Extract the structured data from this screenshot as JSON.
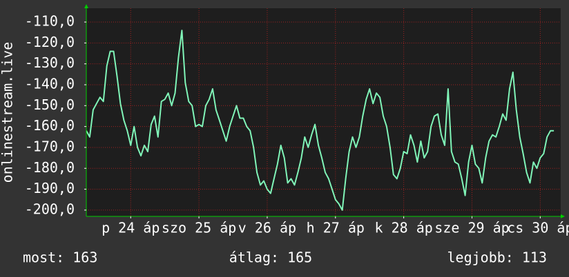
{
  "chart_data": {
    "type": "line",
    "ylabel": "onlinestream.live",
    "color": "#80f5b8",
    "grid": true,
    "annotations": [
      "most: 163",
      "átlag: 165",
      "legjobb: 113"
    ],
    "xlim": [
      23.35,
      30.3
    ],
    "xticks": [
      {
        "value": 24,
        "label": "p 24 áp"
      },
      {
        "value": 25,
        "label": "szo 25 áp"
      },
      {
        "value": 26,
        "label": "v 26 áp"
      },
      {
        "value": 27,
        "label": "h 27 áp"
      },
      {
        "value": 28,
        "label": "k 28 áp"
      },
      {
        "value": 29,
        "label": "sze 29 áp"
      },
      {
        "value": 30,
        "label": "cs 30 áp"
      }
    ],
    "ylim": [
      -203,
      -103.4
    ],
    "yticks": [
      {
        "value": -110,
        "label": "-110,0"
      },
      {
        "value": -120,
        "label": "-120,0"
      },
      {
        "value": -130,
        "label": "-130,0"
      },
      {
        "value": -140,
        "label": "-140,0"
      },
      {
        "value": -150,
        "label": "-150,0"
      },
      {
        "value": -160,
        "label": "-160,0"
      },
      {
        "value": -170,
        "label": "-170,0"
      },
      {
        "value": -180,
        "label": "-180,0"
      },
      {
        "value": -190,
        "label": "-190,0"
      },
      {
        "value": -200,
        "label": "-200,0"
      }
    ],
    "x": [
      23.35,
      23.4,
      23.45,
      23.5,
      23.55,
      23.6,
      23.65,
      23.7,
      23.75,
      23.8,
      23.85,
      23.9,
      23.95,
      24,
      24.05,
      24.1,
      24.15,
      24.2,
      24.25,
      24.3,
      24.35,
      24.4,
      24.45,
      24.5,
      24.55,
      24.6,
      24.65,
      24.7,
      24.75,
      24.8,
      24.85,
      24.9,
      24.95,
      25,
      25.05,
      25.1,
      25.15,
      25.2,
      25.25,
      25.3,
      25.35,
      25.4,
      25.45,
      25.5,
      25.55,
      25.6,
      25.65,
      25.7,
      25.75,
      25.8,
      25.85,
      25.9,
      25.95,
      26,
      26.05,
      26.1,
      26.15,
      26.2,
      26.25,
      26.3,
      26.35,
      26.4,
      26.45,
      26.5,
      26.55,
      26.6,
      26.65,
      26.7,
      26.75,
      26.8,
      26.85,
      26.9,
      26.95,
      27,
      27.05,
      27.1,
      27.15,
      27.2,
      27.25,
      27.3,
      27.35,
      27.4,
      27.45,
      27.5,
      27.55,
      27.6,
      27.65,
      27.7,
      27.75,
      27.8,
      27.85,
      27.9,
      27.95,
      28,
      28.05,
      28.1,
      28.15,
      28.2,
      28.25,
      28.3,
      28.35,
      28.4,
      28.45,
      28.5,
      28.55,
      28.6,
      28.65,
      28.7,
      28.75,
      28.8,
      28.85,
      28.9,
      28.95,
      29,
      29.05,
      29.1,
      29.15,
      29.2,
      29.25,
      29.3,
      29.35,
      29.4,
      29.45,
      29.5,
      29.55,
      29.6,
      29.65,
      29.7,
      29.75,
      29.8,
      29.85,
      29.9,
      29.95,
      30,
      30.05,
      30.1,
      30.15,
      30.2
    ],
    "values": [
      -162,
      -165,
      -152,
      -149,
      -146,
      -148,
      -131,
      -124,
      -124,
      -136,
      -149,
      -157,
      -162,
      -169,
      -160,
      -170,
      -174,
      -169,
      -172,
      -159,
      -155,
      -165,
      -148,
      -147,
      -144,
      -150,
      -144,
      -127,
      -114,
      -139,
      -148,
      -150,
      -160,
      -159,
      -160,
      -150,
      -147,
      -142,
      -152,
      -157,
      -162,
      -167,
      -160,
      -155,
      -150,
      -156,
      -156,
      -160,
      -162,
      -170,
      -182,
      -188,
      -186,
      -190,
      -192,
      -185,
      -178,
      -169,
      -175,
      -187,
      -185,
      -188,
      -182,
      -175,
      -165,
      -170,
      -164,
      -159,
      -169,
      -175,
      -182,
      -185,
      -190,
      -195,
      -197,
      -200,
      -185,
      -172,
      -165,
      -170,
      -165,
      -155,
      -147,
      -142,
      -149,
      -144,
      -146,
      -155,
      -160,
      -170,
      -183,
      -185,
      -180,
      -172,
      -173,
      -164,
      -169,
      -177,
      -167,
      -175,
      -172,
      -160,
      -155,
      -154,
      -164,
      -169,
      -142,
      -172,
      -177,
      -178,
      -185,
      -193,
      -177,
      -169,
      -178,
      -180,
      -187,
      -175,
      -167,
      -164,
      -165,
      -160,
      -154,
      -157,
      -142,
      -134,
      -152,
      -165,
      -173,
      -182,
      -187,
      -177,
      -180,
      -175,
      -173,
      -165,
      -162,
      -162
    ]
  }
}
